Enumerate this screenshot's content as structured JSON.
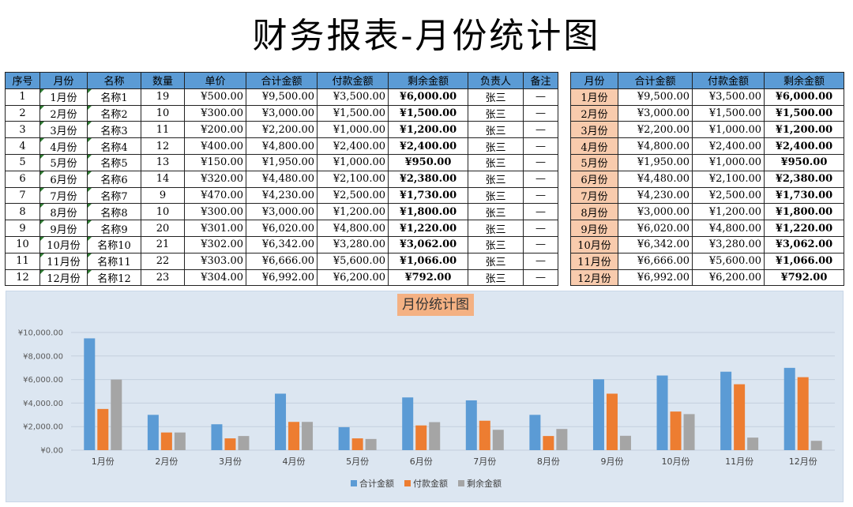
{
  "page_title": "财务报表-月份统计图",
  "main_table": {
    "headers": [
      "序号",
      "月份",
      "名称",
      "数量",
      "单价",
      "合计金额",
      "付款金额",
      "剩余金额",
      "负责人",
      "备注"
    ],
    "rows": [
      [
        "1",
        "1月份",
        "名称1",
        "19",
        "¥500.00",
        "¥9,500.00",
        "¥3,500.00",
        "¥6,000.00",
        "张三",
        "—"
      ],
      [
        "2",
        "2月份",
        "名称2",
        "10",
        "¥300.00",
        "¥3,000.00",
        "¥1,500.00",
        "¥1,500.00",
        "张三",
        "—"
      ],
      [
        "3",
        "3月份",
        "名称3",
        "11",
        "¥200.00",
        "¥2,200.00",
        "¥1,000.00",
        "¥1,200.00",
        "张三",
        "—"
      ],
      [
        "4",
        "4月份",
        "名称4",
        "12",
        "¥400.00",
        "¥4,800.00",
        "¥2,400.00",
        "¥2,400.00",
        "张三",
        "—"
      ],
      [
        "5",
        "5月份",
        "名称5",
        "13",
        "¥150.00",
        "¥1,950.00",
        "¥1,000.00",
        "¥950.00",
        "张三",
        "—"
      ],
      [
        "6",
        "6月份",
        "名称6",
        "14",
        "¥320.00",
        "¥4,480.00",
        "¥2,100.00",
        "¥2,380.00",
        "张三",
        "—"
      ],
      [
        "7",
        "7月份",
        "名称7",
        "9",
        "¥470.00",
        "¥4,230.00",
        "¥2,500.00",
        "¥1,730.00",
        "张三",
        "—"
      ],
      [
        "8",
        "8月份",
        "名称8",
        "10",
        "¥300.00",
        "¥3,000.00",
        "¥1,200.00",
        "¥1,800.00",
        "张三",
        "—"
      ],
      [
        "9",
        "9月份",
        "名称9",
        "20",
        "¥301.00",
        "¥6,020.00",
        "¥4,800.00",
        "¥1,220.00",
        "张三",
        "—"
      ],
      [
        "10",
        "10月份",
        "名称10",
        "21",
        "¥302.00",
        "¥6,342.00",
        "¥3,280.00",
        "¥3,062.00",
        "张三",
        "—"
      ],
      [
        "11",
        "11月份",
        "名称11",
        "22",
        "¥303.00",
        "¥6,666.00",
        "¥5,600.00",
        "¥1,066.00",
        "张三",
        "—"
      ],
      [
        "12",
        "12月份",
        "名称12",
        "23",
        "¥304.00",
        "¥6,992.00",
        "¥6,200.00",
        "¥792.00",
        "张三",
        "—"
      ]
    ]
  },
  "summary_table": {
    "headers": [
      "月份",
      "合计金额",
      "付款金额",
      "剩余金额"
    ],
    "rows": [
      [
        "1月份",
        "¥9,500.00",
        "¥3,500.00",
        "¥6,000.00"
      ],
      [
        "2月份",
        "¥3,000.00",
        "¥1,500.00",
        "¥1,500.00"
      ],
      [
        "3月份",
        "¥2,200.00",
        "¥1,000.00",
        "¥1,200.00"
      ],
      [
        "4月份",
        "¥4,800.00",
        "¥2,400.00",
        "¥2,400.00"
      ],
      [
        "5月份",
        "¥1,950.00",
        "¥1,000.00",
        "¥950.00"
      ],
      [
        "6月份",
        "¥4,480.00",
        "¥2,100.00",
        "¥2,380.00"
      ],
      [
        "7月份",
        "¥4,230.00",
        "¥2,500.00",
        "¥1,730.00"
      ],
      [
        "8月份",
        "¥3,000.00",
        "¥1,200.00",
        "¥1,800.00"
      ],
      [
        "9月份",
        "¥6,020.00",
        "¥4,800.00",
        "¥1,220.00"
      ],
      [
        "10月份",
        "¥6,342.00",
        "¥3,280.00",
        "¥3,062.00"
      ],
      [
        "11月份",
        "¥6,666.00",
        "¥5,600.00",
        "¥1,066.00"
      ],
      [
        "12月份",
        "¥6,992.00",
        "¥6,200.00",
        "¥792.00"
      ]
    ]
  },
  "colors": {
    "series": [
      "#5b9bd5",
      "#ed7d31",
      "#a5a5a5"
    ],
    "header_bg": "#5b9bd5",
    "month_bg": "#f8cbad",
    "chart_bg": "#dce6f1",
    "title_bg": "#f4b183"
  },
  "chart_data": {
    "type": "bar",
    "title": "月份统计图",
    "categories": [
      "1月份",
      "2月份",
      "3月份",
      "4月份",
      "5月份",
      "6月份",
      "7月份",
      "8月份",
      "9月份",
      "10月份",
      "11月份",
      "12月份"
    ],
    "series": [
      {
        "name": "合计金额",
        "values": [
          9500,
          3000,
          2200,
          4800,
          1950,
          4480,
          4230,
          3000,
          6020,
          6342,
          6666,
          6992
        ]
      },
      {
        "name": "付款金额",
        "values": [
          3500,
          1500,
          1000,
          2400,
          1000,
          2100,
          2500,
          1200,
          4800,
          3280,
          5600,
          6200
        ]
      },
      {
        "name": "剩余金额",
        "values": [
          6000,
          1500,
          1200,
          2400,
          950,
          2380,
          1730,
          1800,
          1220,
          3062,
          1066,
          792
        ]
      }
    ],
    "yticks": [
      "¥0.00",
      "¥2,000.00",
      "¥4,000.00",
      "¥6,000.00",
      "¥8,000.00",
      "¥10,000.00"
    ],
    "ylim": [
      0,
      10000
    ],
    "xlabel": "",
    "ylabel": "",
    "grid": true,
    "legend": "bottom"
  }
}
